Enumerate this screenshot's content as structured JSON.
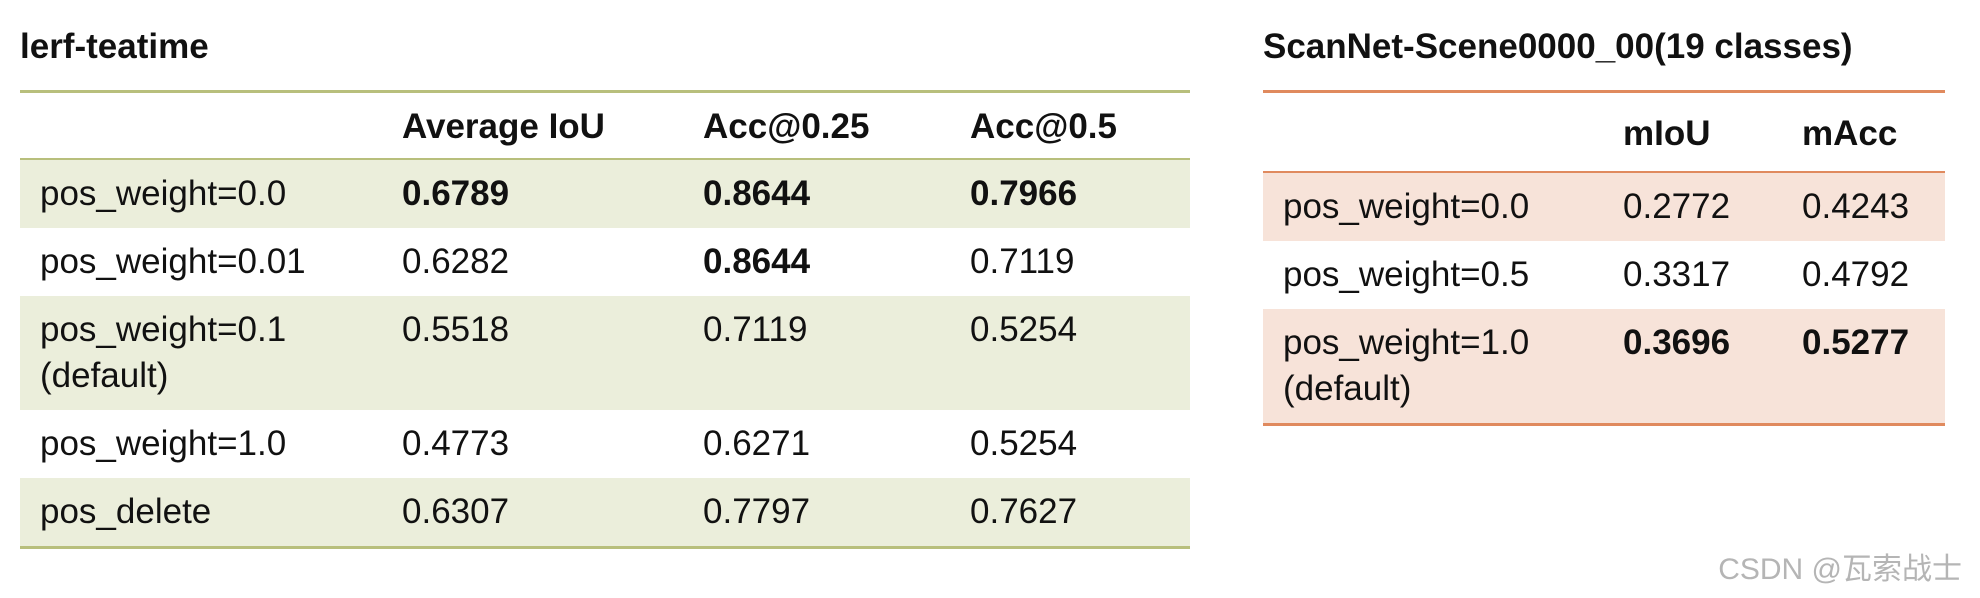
{
  "tables": [
    {
      "title": "lerf-teatime",
      "band_color": "#ebeedb",
      "rule_color": "#b8bf7c",
      "columns": [
        "Average IoU",
        "Acc@0.25",
        "Acc@0.5"
      ],
      "rows": [
        {
          "label": [
            "pos_weight=0.0"
          ],
          "values": [
            0.6789,
            0.8644,
            0.7966
          ],
          "bold": [
            0,
            1,
            2
          ]
        },
        {
          "label": [
            "pos_weight=0.01"
          ],
          "values": [
            0.6282,
            0.8644,
            0.7119
          ],
          "bold": [
            1
          ]
        },
        {
          "label": [
            "pos_weight=0.1",
            "(default)"
          ],
          "values": [
            0.5518,
            0.7119,
            0.5254
          ],
          "bold": []
        },
        {
          "label": [
            "pos_weight=1.0"
          ],
          "values": [
            0.4773,
            0.6271,
            0.5254
          ],
          "bold": []
        },
        {
          "label": [
            "pos_delete"
          ],
          "values": [
            0.6307,
            0.7797,
            0.7627
          ],
          "bold": []
        }
      ]
    },
    {
      "title": "ScanNet-Scene0000_00(19 classes)",
      "band_color": "#f7e3d9",
      "rule_color": "#e08a5e",
      "columns": [
        "mIoU",
        "mAcc"
      ],
      "rows": [
        {
          "label": [
            "pos_weight=0.0"
          ],
          "values": [
            0.2772,
            0.4243
          ],
          "bold": []
        },
        {
          "label": [
            "pos_weight=0.5"
          ],
          "values": [
            0.3317,
            0.4792
          ],
          "bold": []
        },
        {
          "label": [
            "pos_weight=1.0",
            "(default)"
          ],
          "values": [
            0.3696,
            0.5277
          ],
          "bold": [
            0,
            1
          ]
        }
      ]
    }
  ],
  "watermark": "CSDN @瓦索战士"
}
